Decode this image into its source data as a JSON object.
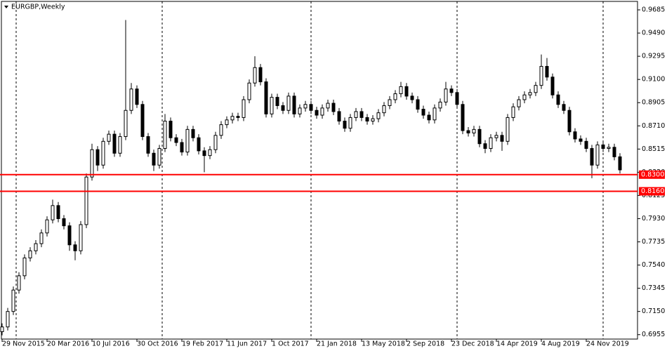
{
  "chart_data": {
    "type": "candlestick",
    "title": "EURGBP,Weekly",
    "open": [
      0.698,
      0.702,
      0.715,
      0.733,
      0.745,
      0.76,
      0.766,
      0.772,
      0.781,
      0.792,
      0.804,
      0.793,
      0.787,
      0.771,
      0.766,
      0.788,
      0.828,
      0.851,
      0.838,
      0.858,
      0.864,
      0.848,
      0.862,
      0.884,
      0.902,
      0.889,
      0.862,
      0.848,
      0.838,
      0.852,
      0.875,
      0.861,
      0.857,
      0.849,
      0.868,
      0.861,
      0.85,
      0.846,
      0.851,
      0.863,
      0.872,
      0.876,
      0.879,
      0.878,
      0.893,
      0.907,
      0.92,
      0.908,
      0.881,
      0.895,
      0.888,
      0.884,
      0.896,
      0.881,
      0.886,
      0.889,
      0.884,
      0.88,
      0.886,
      0.89,
      0.883,
      0.875,
      0.869,
      0.878,
      0.883,
      0.878,
      0.875,
      0.877,
      0.882,
      0.888,
      0.893,
      0.898,
      0.904,
      0.896,
      0.893,
      0.885,
      0.88,
      0.876,
      0.886,
      0.891,
      0.902,
      0.899,
      0.889,
      0.867,
      0.865,
      0.868,
      0.856,
      0.852,
      0.861,
      0.863,
      0.858,
      0.878,
      0.887,
      0.893,
      0.897,
      0.899,
      0.905,
      0.921,
      0.912,
      0.897,
      0.889,
      0.884,
      0.866,
      0.86,
      0.858,
      0.852,
      0.838,
      0.855,
      0.852,
      0.853,
      0.845
    ],
    "high": [
      0.705,
      0.718,
      0.736,
      0.748,
      0.763,
      0.769,
      0.775,
      0.784,
      0.795,
      0.809,
      0.807,
      0.796,
      0.79,
      0.774,
      0.791,
      0.831,
      0.856,
      0.854,
      0.861,
      0.867,
      0.867,
      0.865,
      0.96,
      0.907,
      0.905,
      0.892,
      0.865,
      0.851,
      0.855,
      0.881,
      0.878,
      0.864,
      0.86,
      0.871,
      0.871,
      0.864,
      0.853,
      0.854,
      0.866,
      0.875,
      0.879,
      0.882,
      0.882,
      0.896,
      0.91,
      0.9295,
      0.923,
      0.911,
      0.898,
      0.898,
      0.891,
      0.899,
      0.899,
      0.889,
      0.892,
      0.892,
      0.887,
      0.889,
      0.893,
      0.893,
      0.886,
      0.878,
      0.881,
      0.886,
      0.886,
      0.881,
      0.88,
      0.885,
      0.891,
      0.896,
      0.901,
      0.908,
      0.907,
      0.899,
      0.896,
      0.888,
      0.883,
      0.889,
      0.894,
      0.908,
      0.905,
      0.902,
      0.892,
      0.87,
      0.871,
      0.871,
      0.859,
      0.864,
      0.866,
      0.866,
      0.881,
      0.89,
      0.896,
      0.9,
      0.902,
      0.908,
      0.931,
      0.928,
      0.915,
      0.9,
      0.892,
      0.887,
      0.869,
      0.863,
      0.861,
      0.855,
      0.858,
      0.858,
      0.856,
      0.856,
      0.848
    ],
    "low": [
      0.695,
      0.699,
      0.712,
      0.73,
      0.742,
      0.757,
      0.763,
      0.769,
      0.778,
      0.789,
      0.79,
      0.784,
      0.766,
      0.758,
      0.763,
      0.785,
      0.825,
      0.833,
      0.835,
      0.855,
      0.845,
      0.845,
      0.859,
      0.881,
      0.886,
      0.859,
      0.845,
      0.833,
      0.835,
      0.849,
      0.858,
      0.854,
      0.846,
      0.846,
      0.858,
      0.847,
      0.832,
      0.843,
      0.848,
      0.86,
      0.869,
      0.873,
      0.875,
      0.875,
      0.89,
      0.904,
      0.905,
      0.878,
      0.878,
      0.885,
      0.881,
      0.881,
      0.878,
      0.878,
      0.883,
      0.881,
      0.877,
      0.877,
      0.883,
      0.88,
      0.872,
      0.866,
      0.866,
      0.875,
      0.875,
      0.872,
      0.872,
      0.874,
      0.879,
      0.885,
      0.89,
      0.895,
      0.893,
      0.89,
      0.882,
      0.877,
      0.873,
      0.873,
      0.883,
      0.888,
      0.896,
      0.886,
      0.864,
      0.862,
      0.862,
      0.853,
      0.848,
      0.849,
      0.858,
      0.85,
      0.855,
      0.875,
      0.884,
      0.89,
      0.894,
      0.896,
      0.902,
      0.909,
      0.894,
      0.886,
      0.881,
      0.863,
      0.857,
      0.855,
      0.849,
      0.827,
      0.835,
      0.849,
      0.849,
      0.842,
      0.831
    ],
    "close": [
      0.702,
      0.715,
      0.733,
      0.745,
      0.76,
      0.766,
      0.772,
      0.781,
      0.792,
      0.804,
      0.793,
      0.787,
      0.771,
      0.766,
      0.788,
      0.828,
      0.851,
      0.838,
      0.858,
      0.864,
      0.848,
      0.862,
      0.884,
      0.902,
      0.889,
      0.862,
      0.848,
      0.838,
      0.852,
      0.875,
      0.861,
      0.857,
      0.849,
      0.868,
      0.861,
      0.85,
      0.846,
      0.851,
      0.863,
      0.872,
      0.876,
      0.879,
      0.878,
      0.893,
      0.907,
      0.92,
      0.908,
      0.881,
      0.895,
      0.888,
      0.884,
      0.896,
      0.881,
      0.886,
      0.889,
      0.884,
      0.88,
      0.886,
      0.89,
      0.883,
      0.875,
      0.869,
      0.878,
      0.883,
      0.878,
      0.875,
      0.877,
      0.882,
      0.888,
      0.893,
      0.898,
      0.904,
      0.896,
      0.893,
      0.885,
      0.88,
      0.876,
      0.886,
      0.891,
      0.902,
      0.899,
      0.889,
      0.867,
      0.865,
      0.868,
      0.856,
      0.852,
      0.861,
      0.863,
      0.858,
      0.878,
      0.887,
      0.893,
      0.897,
      0.899,
      0.905,
      0.921,
      0.912,
      0.897,
      0.889,
      0.884,
      0.866,
      0.86,
      0.858,
      0.852,
      0.838,
      0.855,
      0.852,
      0.853,
      0.845,
      0.834
    ],
    "xticks": [
      {
        "value": 0,
        "label": "29 Nov 2015"
      },
      {
        "value": 8,
        "label": "20 Mar 2016"
      },
      {
        "value": 16,
        "label": "10 Jul 2016"
      },
      {
        "value": 24,
        "label": "30 Oct 2016"
      },
      {
        "value": 32,
        "label": "19 Feb 2017"
      },
      {
        "value": 40,
        "label": "11 Jun 2017"
      },
      {
        "value": 48,
        "label": "1 Oct 2017"
      },
      {
        "value": 56,
        "label": "21 Jan 2018"
      },
      {
        "value": 64,
        "label": "13 May 2018"
      },
      {
        "value": 72,
        "label": "2 Sep 2018"
      },
      {
        "value": 80,
        "label": "23 Dec 2018"
      },
      {
        "value": 88,
        "label": "14 Apr 2019"
      },
      {
        "value": 96,
        "label": "4 Aug 2019"
      },
      {
        "value": 104,
        "label": "24 Nov 2019"
      }
    ],
    "separators": [
      2.5,
      28.5,
      55,
      81,
      107
    ],
    "ylim": [
      0.6918,
      0.9756
    ],
    "yticks": [
      0.9685,
      {
        "value": 0.949,
        "label": "0.9490"
      },
      0.9295,
      {
        "value": 0.91,
        "label": "0.9100"
      },
      0.8905,
      {
        "value": 0.871,
        "label": "0.8710"
      },
      0.8515,
      {
        "value": 0.832,
        "label": "0.8320"
      },
      0.8125,
      {
        "value": 0.793,
        "label": "0.7930"
      },
      0.7735,
      {
        "value": 0.754,
        "label": "0.7540"
      },
      0.7345,
      {
        "value": 0.715,
        "label": "0.7150"
      },
      0.6955
    ],
    "levels": [
      {
        "value": 0.83,
        "label": "0.8300",
        "color": "#ff0000"
      },
      {
        "value": 0.816,
        "label": "0.8160",
        "color": "#ff0000"
      }
    ]
  }
}
